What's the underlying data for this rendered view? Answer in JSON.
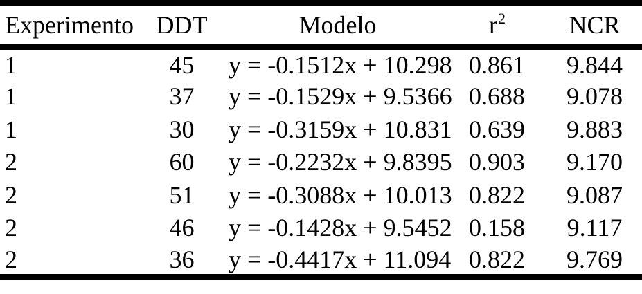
{
  "page": {
    "background_color": "#ffffff",
    "text_color": "#000000",
    "rule_color": "#000000"
  },
  "table": {
    "columns": [
      {
        "key": "experimento",
        "label": "Experimento"
      },
      {
        "key": "ddt",
        "label": "DDT"
      },
      {
        "key": "modelo",
        "label": "Modelo"
      },
      {
        "key": "r2",
        "label": "r",
        "superscript": "2"
      },
      {
        "key": "ncr",
        "label": "NCR"
      }
    ],
    "rows": [
      {
        "experimento": "1",
        "ddt": "45",
        "modelo": "y = -0.1512x + 10.298",
        "r2": "0.861",
        "ncr": "9.844"
      },
      {
        "experimento": "1",
        "ddt": "37",
        "modelo": "y = -0.1529x + 9.5366",
        "r2": "0.688",
        "ncr": "9.078"
      },
      {
        "experimento": "1",
        "ddt": "30",
        "modelo": "y = -0.3159x + 10.831",
        "r2": "0.639",
        "ncr": "9.883"
      },
      {
        "experimento": "2",
        "ddt": "60",
        "modelo": "y = -0.2232x + 9.8395",
        "r2": "0.903",
        "ncr": "9.170"
      },
      {
        "experimento": "2",
        "ddt": "51",
        "modelo": "y = -0.3088x + 10.013",
        "r2": "0.822",
        "ncr": "9.087"
      },
      {
        "experimento": "2",
        "ddt": "46",
        "modelo": "y = -0.1428x + 9.5452",
        "r2": "0.158",
        "ncr": "9.117"
      },
      {
        "experimento": "2",
        "ddt": "36",
        "modelo": "y = -0.4417x + 11.094",
        "r2": "0.822",
        "ncr": "9.769"
      }
    ]
  },
  "chart_data": {
    "type": "table",
    "columns": [
      "Experimento",
      "DDT",
      "Modelo",
      "r2",
      "NCR"
    ],
    "rows": [
      [
        1,
        45,
        "y = -0.1512x + 10.298",
        0.861,
        9.844
      ],
      [
        1,
        37,
        "y = -0.1529x + 9.5366",
        0.688,
        9.078
      ],
      [
        1,
        30,
        "y = -0.3159x + 10.831",
        0.639,
        9.883
      ],
      [
        2,
        60,
        "y = -0.2232x + 9.8395",
        0.903,
        9.17
      ],
      [
        2,
        51,
        "y = -0.3088x + 10.013",
        0.822,
        9.087
      ],
      [
        2,
        46,
        "y = -0.1428x + 9.5452",
        0.158,
        9.117
      ],
      [
        2,
        36,
        "y = -0.4417x + 11.094",
        0.822,
        9.769
      ]
    ]
  }
}
